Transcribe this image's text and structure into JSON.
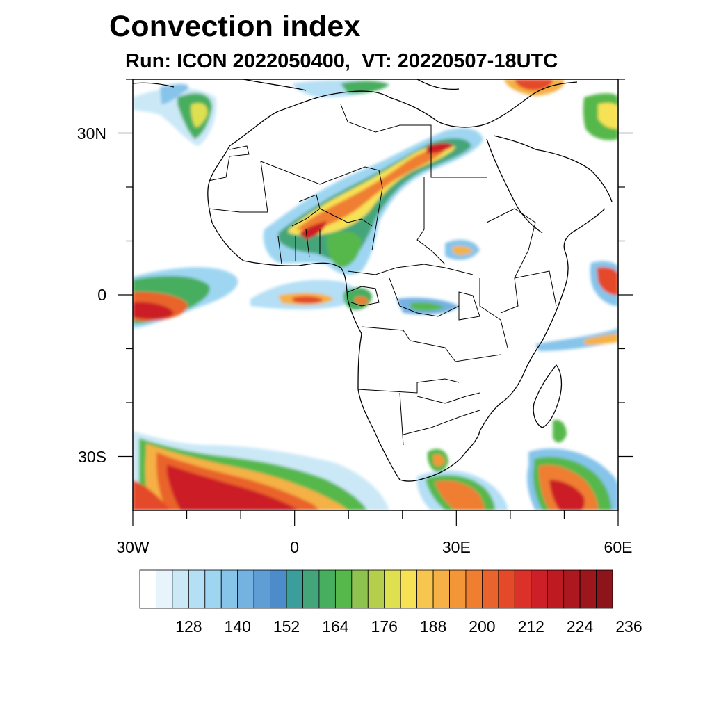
{
  "title": "Convection index",
  "subtitle": "Run: ICON 2022050400,  VT: 20220507-18UTC",
  "map": {
    "lon_range": [
      -30,
      60
    ],
    "lat_range": [
      -40,
      40
    ],
    "x_ticks": [
      {
        "lon": -30,
        "label": "30W"
      },
      {
        "lon": 0,
        "label": "0"
      },
      {
        "lon": 30,
        "label": "30E"
      },
      {
        "lon": 60,
        "label": "60E"
      }
    ],
    "y_ticks": [
      {
        "lat": 30,
        "label": "30N"
      },
      {
        "lat": 0,
        "label": "0"
      },
      {
        "lat": -30,
        "label": "30S"
      }
    ]
  },
  "colorbar": {
    "colors": [
      "#ffffff",
      "#e8f4fc",
      "#cbe8f7",
      "#b4dff5",
      "#9ed6f2",
      "#86c4ea",
      "#74b2e2",
      "#5e9ed5",
      "#4d8ccb",
      "#3b9e9a",
      "#44a57a",
      "#47ae5e",
      "#56b84b",
      "#8ec34f",
      "#b3cf4c",
      "#dfe050",
      "#f7e256",
      "#f8c64f",
      "#f5b145",
      "#f29638",
      "#ef7e31",
      "#e9632c",
      "#e44a29",
      "#db3129",
      "#cc1f27",
      "#be1a22",
      "#ad1820",
      "#9c161c",
      "#8c141a"
    ],
    "labels": [
      "128",
      "140",
      "152",
      "164",
      "176",
      "188",
      "200",
      "212",
      "224",
      "236"
    ]
  }
}
